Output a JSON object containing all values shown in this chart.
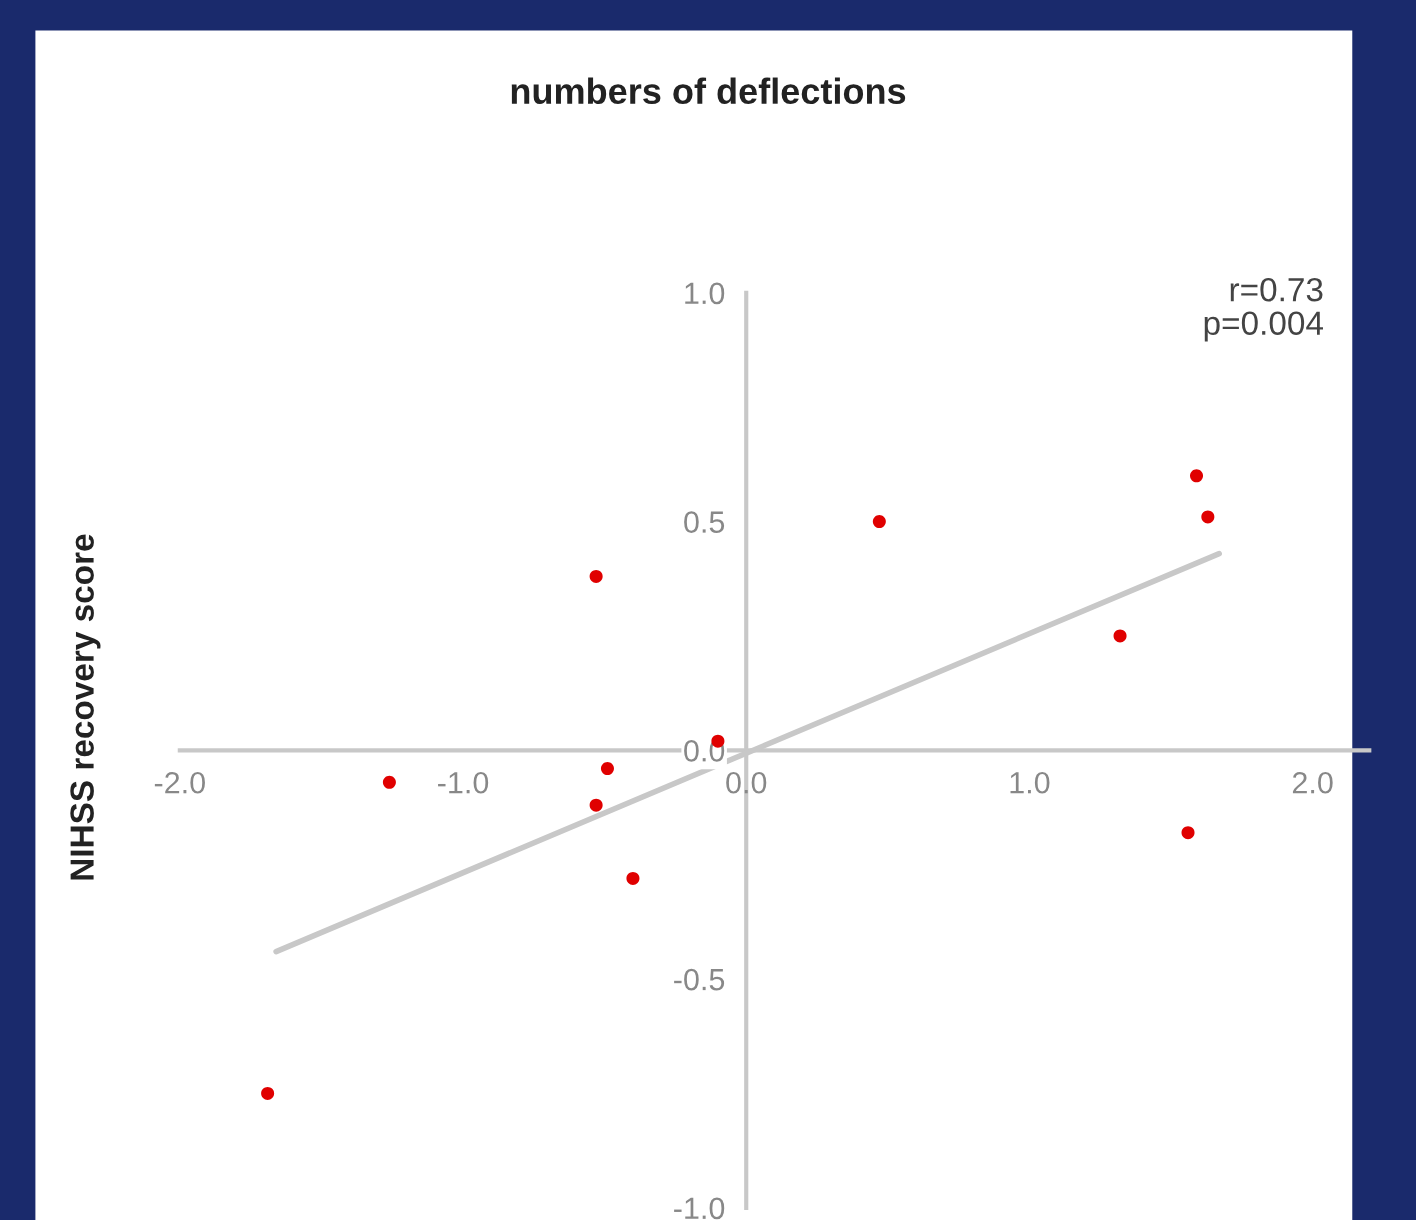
{
  "chart_data": {
    "type": "scatter",
    "title": "numbers of deflections",
    "ylabel": "NIHSS recovery score",
    "annotations": [
      "r=0.73\np=0.004"
    ],
    "xlim": [
      -2.0,
      2.2
    ],
    "ylim": [
      -1.0,
      1.0
    ],
    "xticks": [
      {
        "value": -2,
        "label": "-2.0"
      },
      {
        "value": -1,
        "label": "-1.0"
      },
      {
        "value": 0,
        "label": "0.0"
      },
      {
        "value": 1,
        "label": "1.0"
      },
      {
        "value": 2,
        "label": "2.0"
      }
    ],
    "yticks": [
      {
        "value": -1,
        "label": "-1.0"
      },
      {
        "value": -0.5,
        "label": "-0.5"
      },
      {
        "value": 0,
        "label": "0.0"
      },
      {
        "value": 0.5,
        "label": "0.5"
      },
      {
        "value": 1,
        "label": "1.0"
      }
    ],
    "grid": false,
    "legend": false,
    "series": [
      {
        "marker": "circle",
        "color": "#e00000",
        "x": [
          -1.69,
          -1.26,
          -0.53,
          -0.49,
          -0.53,
          -0.4,
          -0.1,
          0.47,
          1.32,
          1.59,
          1.63,
          1.56
        ],
        "values": [
          -0.75,
          -0.07,
          0.38,
          -0.04,
          -0.12,
          -0.28,
          0.02,
          0.5,
          0.25,
          0.6,
          0.51,
          -0.18
        ]
      },
      {
        "type": "line",
        "color": "#c8c8c8",
        "x": [
          -1.66,
          1.67
        ],
        "values": [
          -0.44,
          0.43
        ]
      }
    ]
  }
}
